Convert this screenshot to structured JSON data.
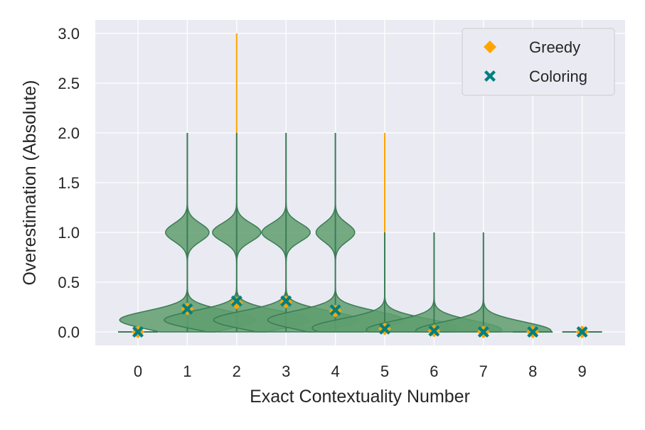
{
  "chart_data": {
    "type": "violin",
    "title": "",
    "xlabel": "Exact Contextuality Number",
    "ylabel": "Overestimation (Absolute)",
    "categories": [
      0,
      1,
      2,
      3,
      4,
      5,
      6,
      7,
      8,
      9
    ],
    "ylim": [
      -0.15,
      3.15
    ],
    "yticks": [
      "0.0",
      "0.5",
      "1.0",
      "1.5",
      "2.0",
      "2.5",
      "3.0"
    ],
    "grid": true,
    "legend_position": "top-right",
    "colors": {
      "greedy": "#FFA500",
      "coloring": "#008080",
      "violin_fill": "#5f9e6e",
      "violin_edge": "#3a7d55",
      "plot_bg": "#eaeaf2",
      "grid": "#ffffff"
    },
    "series": [
      {
        "name": "Greedy",
        "marker": "diamond",
        "means": [
          0.0,
          0.23,
          0.29,
          0.3,
          0.21,
          0.03,
          0.01,
          0.0,
          0.0,
          0.0
        ],
        "max": [
          0,
          2,
          3,
          2,
          2,
          2,
          1,
          1,
          0,
          0
        ]
      },
      {
        "name": "Coloring",
        "marker": "x",
        "means": [
          0.0,
          0.23,
          0.31,
          0.31,
          0.22,
          0.03,
          0.01,
          0.0,
          0.0,
          0.0
        ],
        "max": [
          0,
          2,
          2,
          2,
          2,
          1,
          1,
          1,
          0,
          0
        ]
      }
    ],
    "violin_lobes": [
      [],
      [
        [
          0.12,
          0.28
        ],
        [
          1.0,
          0.09
        ]
      ],
      [
        [
          0.12,
          0.3
        ],
        [
          1.0,
          0.1
        ]
      ],
      [
        [
          0.12,
          0.3
        ],
        [
          1.0,
          0.1
        ]
      ],
      [
        [
          0.12,
          0.28
        ],
        [
          1.0,
          0.08
        ]
      ],
      [
        [
          0.04,
          0.3
        ]
      ],
      [
        [
          0.02,
          0.28
        ]
      ],
      [
        [
          0.01,
          0.28
        ]
      ],
      [],
      []
    ]
  }
}
